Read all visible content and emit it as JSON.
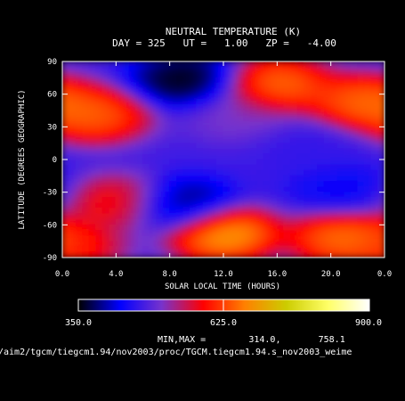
{
  "chart_data": {
    "type": "heatmap",
    "title": "NEUTRAL TEMPERATURE (K)",
    "subtitle": "DAY = 325   UT =   1.00   ZP =   -4.00",
    "xlabel": "SOLAR LOCAL TIME (HOURS)",
    "ylabel": "LATITUDE (DEGREES GEOGRAPHIC)",
    "x_ticks": [
      "0.0",
      "4.0",
      "8.0",
      "12.0",
      "16.0",
      "20.0",
      "0.0"
    ],
    "y_ticks": [
      "90",
      "60",
      "30",
      "0",
      "-30",
      "-60",
      "-90"
    ],
    "xlim": [
      0,
      24
    ],
    "ylim": [
      -90,
      90
    ],
    "colorbar": {
      "min_label": "350.0",
      "mid_label": "625.0",
      "max_label": "900.0",
      "range": [
        350,
        900
      ],
      "colors": [
        "#000000",
        "#0000ff",
        "#7733cc",
        "#ff0000",
        "#ff8000",
        "#cccc00",
        "#ffff66",
        "#ffffff"
      ]
    },
    "minmax_text": "MIN,MAX =        314.0,       758.1",
    "min": 314.0,
    "max": 758.1,
    "features": [
      {
        "lt": 9.2,
        "lat": 72,
        "value": 320
      },
      {
        "lt": 2.5,
        "lat": 40,
        "value": 690
      },
      {
        "lt": 16.0,
        "lat": 68,
        "value": 705
      },
      {
        "lt": 22.5,
        "lat": 52,
        "value": 700
      },
      {
        "lt": 18.5,
        "lat": 10,
        "value": 460
      },
      {
        "lt": 9.0,
        "lat": -43,
        "value": 350
      },
      {
        "lt": 12.0,
        "lat": -68,
        "value": 758
      },
      {
        "lt": 21.0,
        "lat": -72,
        "value": 710
      },
      {
        "lt": 21.0,
        "lat": -30,
        "value": 420
      },
      {
        "lt": 4.0,
        "lat": -40,
        "value": 630
      },
      {
        "lt": 0.5,
        "lat": -80,
        "value": 640
      },
      {
        "lt": 13.0,
        "lat": 40,
        "value": 520
      }
    ]
  },
  "footer_path": "/aim2/tgcm/tiegcm1.94/nov2003/proc/TGCM.tiegcm1.94.s_nov2003_weime"
}
